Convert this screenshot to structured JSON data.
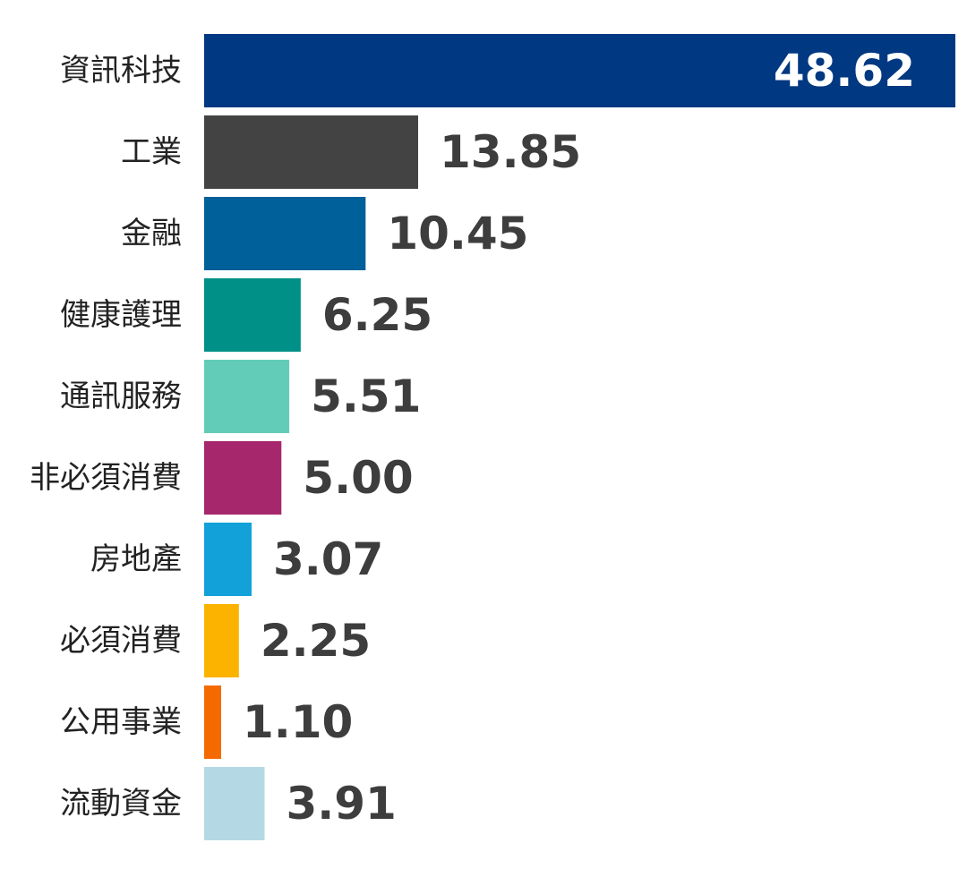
{
  "chart_data": {
    "type": "bar",
    "orientation": "horizontal",
    "title": "",
    "xlabel": "",
    "ylabel": "",
    "grid": false,
    "legend": "none",
    "xlim": [
      0,
      48.62
    ],
    "categories": [
      "資訊科技",
      "工業",
      "金融",
      "健康護理",
      "通訊服務",
      "非必須消費",
      "房地產",
      "必須消費",
      "公用事業",
      "流動資金"
    ],
    "values": [
      48.62,
      13.85,
      10.45,
      6.25,
      5.51,
      5.0,
      3.07,
      2.25,
      1.1,
      3.91
    ],
    "value_labels": [
      "48.62",
      "13.85",
      "10.45",
      "6.25",
      "5.51",
      "5.00",
      "3.07",
      "2.25",
      "1.10",
      "3.91"
    ],
    "colors": [
      "#003882",
      "#434343",
      "#00609a",
      "#009088",
      "#63ccb9",
      "#a6276c",
      "#12a1d8",
      "#fbb300",
      "#f56a00",
      "#b4d9e4"
    ]
  }
}
